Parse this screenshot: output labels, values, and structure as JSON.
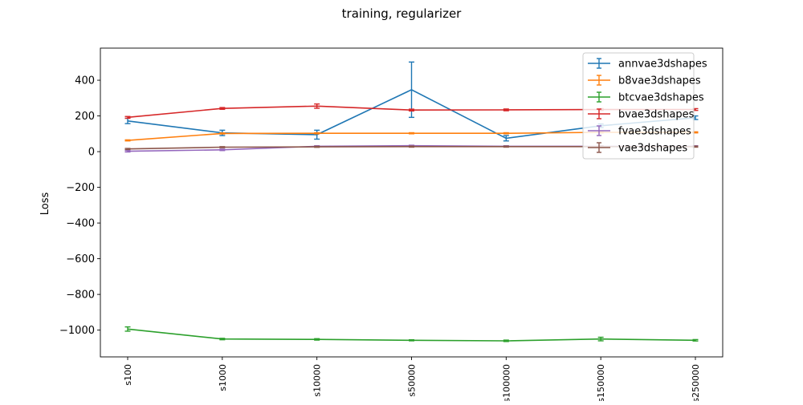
{
  "chart_data": {
    "type": "line",
    "title": "training, regularizer",
    "xlabel": "",
    "ylabel": "Loss",
    "categories": [
      "s100",
      "s1000",
      "s10000",
      "s50000",
      "s100000",
      "s150000",
      "s250000"
    ],
    "ylim": [
      -1150,
      580
    ],
    "yticks": [
      400,
      200,
      0,
      -200,
      -400,
      -600,
      -800,
      -1000
    ],
    "ytick_labels": [
      "400",
      "200",
      "0",
      "−200",
      "−400",
      "−600",
      "−800",
      "−1000"
    ],
    "legend_position": "top-right",
    "grid": false,
    "error_bars": true,
    "series": [
      {
        "name": "annvae3dshapes",
        "color": "#1f77b4",
        "values": [
          172,
          105,
          95,
          347,
          75,
          145,
          190
        ],
        "errors": [
          15,
          15,
          25,
          155,
          15,
          10,
          10
        ]
      },
      {
        "name": "b8vae3dshapes",
        "color": "#ff7f0e",
        "values": [
          63,
          102,
          103,
          103,
          103,
          108,
          108
        ],
        "errors": [
          3,
          3,
          3,
          3,
          3,
          3,
          3
        ]
      },
      {
        "name": "btcvae3dshapes",
        "color": "#2ca02c",
        "values": [
          -994,
          -1050,
          -1052,
          -1057,
          -1060,
          -1050,
          -1057
        ],
        "errors": [
          12,
          4,
          4,
          3,
          4,
          10,
          4
        ]
      },
      {
        "name": "bvae3dshapes",
        "color": "#d62728",
        "values": [
          192,
          242,
          255,
          233,
          234,
          236,
          236
        ],
        "errors": [
          5,
          5,
          12,
          5,
          5,
          5,
          5
        ]
      },
      {
        "name": "fvae3dshapes",
        "color": "#9467bd",
        "values": [
          2,
          10,
          30,
          33,
          30,
          30,
          30
        ],
        "errors": [
          4,
          4,
          3,
          3,
          3,
          3,
          3
        ]
      },
      {
        "name": "vae3dshapes",
        "color": "#8c564b",
        "values": [
          15,
          25,
          27,
          28,
          28,
          28,
          28
        ],
        "errors": [
          3,
          3,
          3,
          3,
          3,
          3,
          3
        ]
      }
    ]
  }
}
